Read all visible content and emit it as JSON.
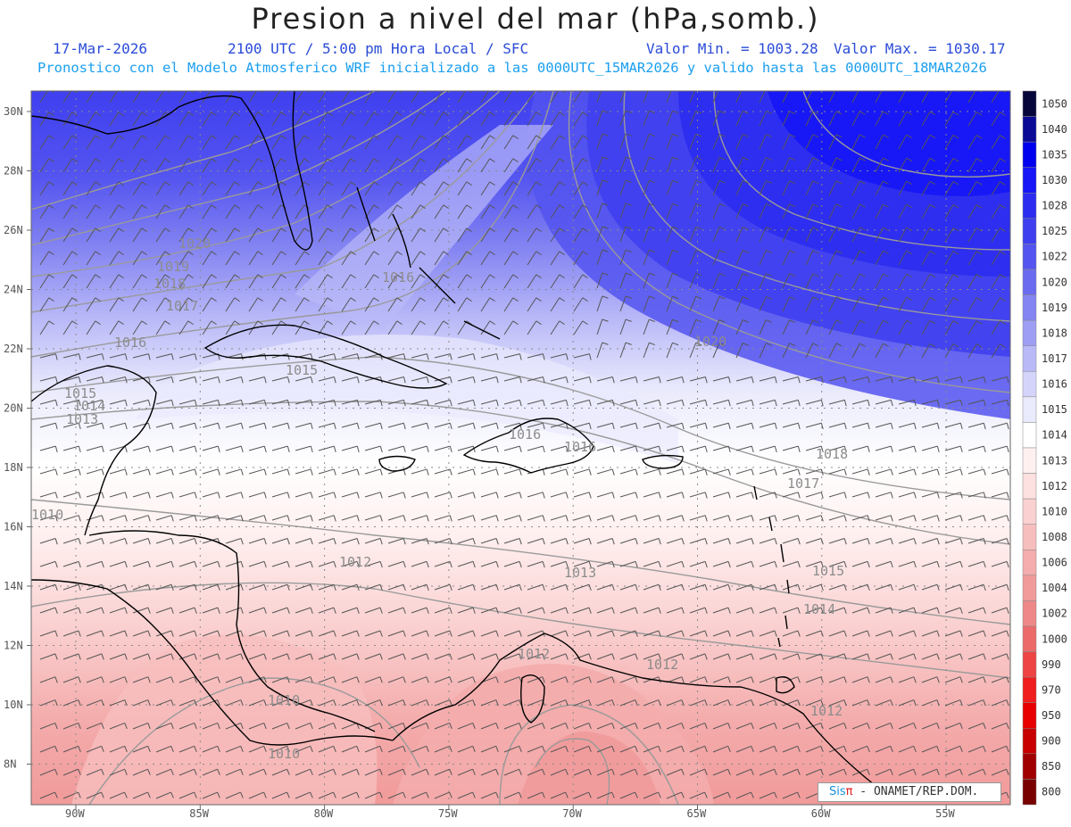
{
  "header": {
    "title": "Presion a nivel del mar (hPa,somb.)",
    "date": "17-Mar-2026",
    "time_info": "2100 UTC / 5:00 pm Hora Local / SFC",
    "min_label": "Valor Min. = 1003.28",
    "max_label": "Valor Max. = 1030.17",
    "forecast_info": "Pronostico con el Modelo Atmosferico WRF inicializado a las 0000UTC_15MAR2026 y valido hasta las  0000UTC_18MAR2026"
  },
  "axes": {
    "lat_labels": [
      "30N",
      "28N",
      "26N",
      "24N",
      "22N",
      "20N",
      "18N",
      "16N",
      "14N",
      "12N",
      "10N",
      "8N"
    ],
    "lon_labels": [
      "90W",
      "85W",
      "80W",
      "75W",
      "70W",
      "65W",
      "60W",
      "55W"
    ]
  },
  "colorbar": {
    "levels": [
      "1050",
      "1040",
      "1035",
      "1030",
      "1028",
      "1025",
      "1022",
      "1020",
      "1019",
      "1018",
      "1017",
      "1016",
      "1015",
      "1014",
      "1013",
      "1012",
      "1010",
      "1008",
      "1006",
      "1004",
      "1002",
      "1000",
      "990",
      "970",
      "950",
      "900",
      "850",
      "800"
    ],
    "colors": [
      "#06063a",
      "#0a0a96",
      "#0000ee",
      "#1616f6",
      "#2c2cf0",
      "#3f3ff0",
      "#5454f0",
      "#6b6bf0",
      "#8484f2",
      "#9e9ef5",
      "#b9b9f8",
      "#d4d4fb",
      "#eaeafd",
      "#ffffff",
      "#fff0f0",
      "#fde0e0",
      "#fad0d0",
      "#f7bebe",
      "#f4acac",
      "#f19a9a",
      "#ee8888",
      "#ec6a6a",
      "#ee4444",
      "#f01e1e",
      "#e80000",
      "#c80000",
      "#a00000",
      "#780000"
    ]
  },
  "contour_labels": [
    "1020",
    "1019",
    "1018",
    "1017",
    "1016",
    "1016",
    "1015",
    "1015",
    "1014",
    "1013",
    "1020",
    "1016",
    "1016",
    "1018",
    "1017",
    "1015",
    "1014",
    "1013",
    "1012",
    "1012",
    "1012",
    "1012",
    "1010",
    "1010",
    "1010"
  ],
  "credit": {
    "sis": "Sis",
    "pi": "π",
    "text": "- ONAMET/REP.DOM."
  }
}
